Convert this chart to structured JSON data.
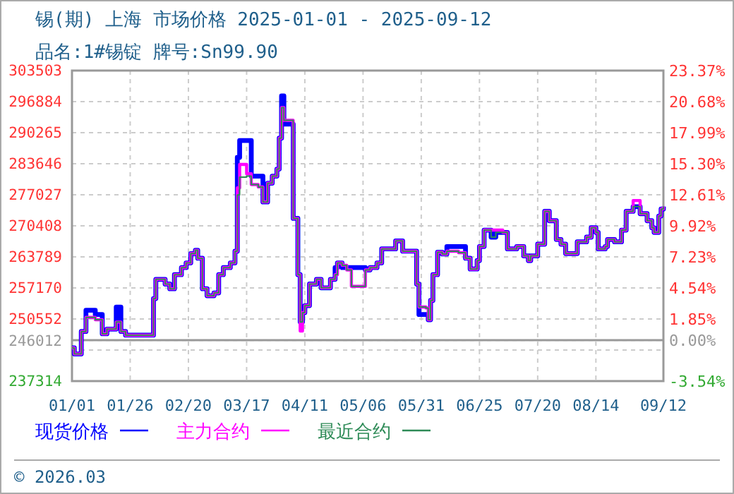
{
  "chart_data": {
    "type": "step",
    "title": "锡(期) 上海 市场价格 2025-01-01 - 2025-09-12",
    "subtitle": "品名:1#锡锭 牌号:Sn99.90",
    "annotations": [
      "© 2026.03"
    ],
    "x": [
      "2025-01-01",
      "2025-01-02",
      "2025-01-04",
      "2025-01-05",
      "2025-01-07",
      "2025-01-09",
      "2025-01-11",
      "2025-01-14",
      "2025-01-16",
      "2025-01-19",
      "2025-01-20",
      "2025-01-22",
      "2025-01-24",
      "2025-02-04",
      "2025-02-05",
      "2025-02-06",
      "2025-02-09",
      "2025-02-10",
      "2025-02-12",
      "2025-02-14",
      "2025-02-17",
      "2025-02-19",
      "2025-02-21",
      "2025-02-23",
      "2025-02-24",
      "2025-02-26",
      "2025-02-28",
      "2025-03-03",
      "2025-03-05",
      "2025-03-07",
      "2025-03-10",
      "2025-03-12",
      "2025-03-13",
      "2025-03-14",
      "2025-03-17",
      "2025-03-19",
      "2025-03-22",
      "2025-03-24",
      "2025-03-26",
      "2025-03-28",
      "2025-03-30",
      "2025-03-31",
      "2025-04-01",
      "2025-04-02",
      "2025-04-05",
      "2025-04-06",
      "2025-04-08",
      "2025-04-09",
      "2025-04-10",
      "2025-04-11",
      "2025-04-13",
      "2025-04-16",
      "2025-04-18",
      "2025-04-20",
      "2025-04-22",
      "2025-04-24",
      "2025-04-25",
      "2025-04-27",
      "2025-04-29",
      "2025-05-01",
      "2025-05-06",
      "2025-05-07",
      "2025-05-09",
      "2025-05-12",
      "2025-05-14",
      "2025-05-18",
      "2025-05-20",
      "2025-05-23",
      "2025-05-27",
      "2025-05-29",
      "2025-05-30",
      "2025-06-02",
      "2025-06-03",
      "2025-06-04",
      "2025-06-05",
      "2025-06-07",
      "2025-06-09",
      "2025-06-11",
      "2025-06-16",
      "2025-06-19",
      "2025-06-21",
      "2025-06-24",
      "2025-06-25",
      "2025-06-27",
      "2025-06-30",
      "2025-07-02",
      "2025-07-05",
      "2025-07-07",
      "2025-07-11",
      "2025-07-14",
      "2025-07-16",
      "2025-07-17",
      "2025-07-20",
      "2025-07-23",
      "2025-07-25",
      "2025-07-27",
      "2025-07-28",
      "2025-07-30",
      "2025-08-01",
      "2025-08-03",
      "2025-08-06",
      "2025-08-10",
      "2025-08-12",
      "2025-08-14",
      "2025-08-15",
      "2025-08-18",
      "2025-08-19",
      "2025-08-22",
      "2025-08-25",
      "2025-08-27",
      "2025-08-30",
      "2025-09-02",
      "2025-09-05",
      "2025-09-07",
      "2025-09-08",
      "2025-09-10",
      "2025-09-11",
      "2025-09-12"
    ],
    "series": [
      {
        "name": "现货价格",
        "color": "#0000ff",
        "values": [
          244400,
          243100,
          243100,
          247900,
          252400,
          252400,
          251500,
          247400,
          248400,
          248400,
          253100,
          247900,
          247100,
          247100,
          254900,
          259000,
          259000,
          258000,
          257000,
          260000,
          261500,
          262500,
          264500,
          265200,
          263500,
          257000,
          255500,
          256100,
          260000,
          261500,
          262500,
          265000,
          285000,
          288600,
          288600,
          281000,
          281000,
          275500,
          279500,
          281000,
          282500,
          289100,
          298100,
          292100,
          292100,
          272000,
          260000,
          249900,
          251900,
          253400,
          258000,
          259000,
          257200,
          257200,
          259000,
          261500,
          262500,
          261500,
          261500,
          261500,
          261500,
          261000,
          261500,
          262500,
          265500,
          265500,
          267200,
          265000,
          265000,
          258000,
          251500,
          251500,
          250400,
          254500,
          260000,
          264800,
          264400,
          266000,
          266000,
          263500,
          261200,
          263000,
          266000,
          269500,
          268000,
          269000,
          269000,
          265500,
          266000,
          264000,
          263000,
          264000,
          266500,
          273500,
          271500,
          271500,
          267500,
          266500,
          264500,
          264500,
          267000,
          268000,
          270000,
          269000,
          265500,
          266000,
          267500,
          267000,
          269500,
          273500,
          274500,
          273000,
          271500,
          270000,
          269000,
          272500,
          274000,
          274500
        ]
      },
      {
        "name": "主力合约",
        "color": "#ff00ff",
        "values": [
          244400,
          243100,
          243100,
          247900,
          250900,
          250900,
          250400,
          247400,
          248400,
          248400,
          249900,
          247900,
          247100,
          247100,
          254900,
          259000,
          259000,
          258000,
          257000,
          260000,
          261500,
          262500,
          264500,
          265200,
          263500,
          257000,
          255500,
          256100,
          260000,
          261500,
          262500,
          265000,
          278500,
          283500,
          281500,
          279200,
          278700,
          275500,
          279500,
          281000,
          282500,
          289100,
          295600,
          292900,
          292900,
          272000,
          260000,
          248000,
          251900,
          253400,
          258000,
          259000,
          257200,
          257200,
          259000,
          260000,
          262500,
          262000,
          261000,
          257500,
          257500,
          261000,
          261500,
          262500,
          265500,
          265500,
          267200,
          265000,
          265000,
          258000,
          253100,
          252900,
          250400,
          254500,
          260000,
          264800,
          264400,
          265000,
          264700,
          263500,
          261200,
          263000,
          266000,
          269500,
          269500,
          269500,
          269000,
          265500,
          266000,
          264000,
          263000,
          264000,
          266500,
          273500,
          271500,
          271500,
          267500,
          266500,
          264500,
          264500,
          267000,
          268000,
          270000,
          269000,
          265500,
          266000,
          267500,
          267000,
          269500,
          273500,
          275800,
          273000,
          271500,
          270000,
          269000,
          272500,
          274000,
          274500
        ]
      },
      {
        "name": "最近合约",
        "color": "#2e8b57",
        "values": [
          244400,
          243100,
          243100,
          247900,
          250900,
          250900,
          250400,
          247400,
          248400,
          248400,
          249900,
          247900,
          247100,
          247100,
          254900,
          259000,
          259000,
          258000,
          257000,
          260000,
          261500,
          262500,
          264500,
          265200,
          263500,
          257000,
          255500,
          256100,
          260000,
          261500,
          262500,
          265000,
          277000,
          280800,
          281000,
          279200,
          278700,
          275500,
          279500,
          281000,
          282500,
          289100,
          295600,
          292900,
          292900,
          272000,
          260000,
          249900,
          251900,
          253400,
          258000,
          259000,
          257200,
          257200,
          259000,
          260000,
          262500,
          262000,
          261000,
          257500,
          257500,
          261000,
          261500,
          262500,
          265500,
          265500,
          267200,
          265000,
          265000,
          258000,
          253100,
          252900,
          250400,
          254500,
          260000,
          264800,
          264400,
          265000,
          264700,
          263500,
          261200,
          263000,
          266000,
          269500,
          268000,
          269000,
          269000,
          265500,
          266000,
          264000,
          263000,
          264000,
          266500,
          273500,
          271500,
          271500,
          267500,
          266500,
          264500,
          264500,
          267000,
          268000,
          270000,
          269000,
          265500,
          266000,
          267500,
          267000,
          269500,
          273500,
          274500,
          273000,
          271500,
          270000,
          269000,
          272500,
          274000,
          274500
        ]
      }
    ],
    "xlim": [
      "2025-01-01",
      "2025-09-12"
    ],
    "xticks": [
      {
        "value": "2025-01-01",
        "label": "01/01"
      },
      {
        "value": "2025-01-26",
        "label": "01/26"
      },
      {
        "value": "2025-02-20",
        "label": "02/20"
      },
      {
        "value": "2025-03-17",
        "label": "03/17"
      },
      {
        "value": "2025-04-11",
        "label": "04/11"
      },
      {
        "value": "2025-05-06",
        "label": "05/06"
      },
      {
        "value": "2025-05-31",
        "label": "05/31"
      },
      {
        "value": "2025-06-25",
        "label": "06/25"
      },
      {
        "value": "2025-07-20",
        "label": "07/20"
      },
      {
        "value": "2025-08-14",
        "label": "08/14"
      },
      {
        "value": "2025-09-12",
        "label": "09/12"
      }
    ],
    "ylim": [
      237314,
      303503
    ],
    "yticks": [
      303503,
      296884,
      290265,
      283646,
      277027,
      270408,
      263789,
      257170,
      250552,
      246012,
      {
        "value": 243933,
        "label": null
      },
      237314
    ],
    "y2lim": [
      -3.54,
      23.37
    ],
    "y2ticks": [
      {
        "value": 23.37,
        "label": "23.37%"
      },
      {
        "value": 20.68,
        "label": "20.68%"
      },
      {
        "value": 17.99,
        "label": "17.99%"
      },
      {
        "value": 15.3,
        "label": "15.30%"
      },
      {
        "value": 12.61,
        "label": "12.61%"
      },
      {
        "value": 9.92,
        "label": "9.92%"
      },
      {
        "value": 7.23,
        "label": "7.23%"
      },
      {
        "value": 4.54,
        "label": "4.54%"
      },
      {
        "value": 1.85,
        "label": "1.85%"
      },
      {
        "value": 0,
        "label": "0.00%"
      },
      {
        "value": -3.54,
        "label": "-3.54%"
      }
    ],
    "ref_lines": [
      {
        "axis": "y2",
        "value": 0,
        "color": "#999999"
      }
    ],
    "grid": true,
    "legend": "bottom"
  }
}
